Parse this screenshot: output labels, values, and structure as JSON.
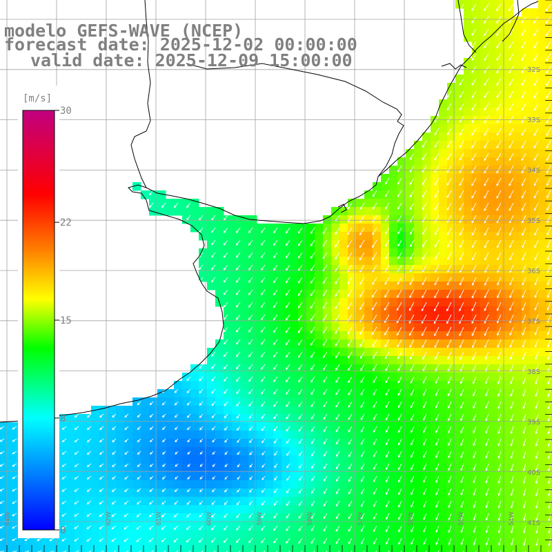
{
  "title": {
    "model_line": "modelo GEFS-WAVE (NCEP)",
    "forecast_line": "forecast date: 2025-12-02 00:00:00",
    "valid_line": "valid date: 2025-12-09 15:00:00"
  },
  "colorbar": {
    "unit": "[m/s]",
    "ticks": [
      "30",
      "22",
      "15",
      "8",
      "0"
    ],
    "tick_values": [
      30,
      22,
      15,
      8,
      0
    ],
    "range": [
      0,
      30
    ],
    "stops": [
      "#0000ff",
      "#00ffff",
      "#00ff00",
      "#ffff00",
      "#ff8000",
      "#ff0000",
      "#c00080"
    ]
  },
  "axes": {
    "lat_labels": [
      "32S",
      "33S",
      "34S",
      "35S",
      "36S",
      "37S",
      "38S",
      "39S",
      "40S",
      "41S"
    ],
    "lon_labels": [
      "64W",
      "63W",
      "62W",
      "61W",
      "60W",
      "59W",
      "58W",
      "57W",
      "56W",
      "55W",
      "54W"
    ]
  },
  "field": {
    "variable": "wind speed",
    "units": "m/s",
    "domain_lat": [
      -41.4,
      -30.7
    ],
    "domain_lon": [
      -64.0,
      -53.0
    ]
  },
  "colors": {
    "land": "#ffffff",
    "grid": "#a0a0a0",
    "coastline": "#000000",
    "arrows": "#ffffff",
    "labels": "#808080"
  }
}
